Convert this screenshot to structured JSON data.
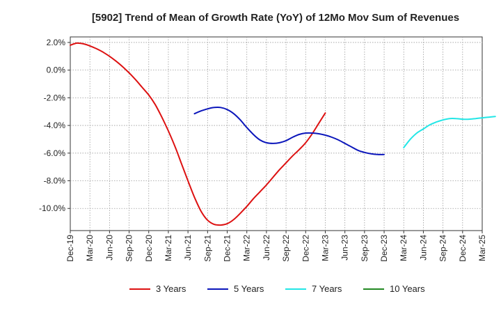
{
  "chart_data": {
    "type": "line",
    "title": "[5902]  Trend of Mean of Growth Rate (YoY) of 12Mo Mov Sum of Revenues",
    "xlabel": "",
    "ylabel": "",
    "ylim": [
      -11.6,
      2.4
    ],
    "y_ticks": [
      2.0,
      0.0,
      -2.0,
      -4.0,
      -6.0,
      -8.0,
      -10.0
    ],
    "y_tick_labels": [
      "2.0%",
      "0.0%",
      "-2.0%",
      "-4.0%",
      "-6.0%",
      "-8.0%",
      "-10.0%"
    ],
    "x_tick_labels": [
      "Dec-19",
      "Mar-20",
      "Jun-20",
      "Sep-20",
      "Dec-20",
      "Mar-21",
      "Jun-21",
      "Sep-21",
      "Dec-21",
      "Mar-22",
      "Jun-22",
      "Sep-22",
      "Dec-22",
      "Mar-23",
      "Jun-23",
      "Sep-23",
      "Dec-23",
      "Mar-24",
      "Jun-24",
      "Sep-24",
      "Dec-24",
      "Mar-25"
    ],
    "grid": true,
    "legend_position": "bottom",
    "series": [
      {
        "name": "3 Years",
        "color": "#dd1111",
        "start_index": 0,
        "values": [
          1.8,
          1.95,
          1.9,
          1.75,
          1.55,
          1.3,
          1.0,
          0.65,
          0.25,
          -0.2,
          -0.7,
          -1.25,
          -1.8,
          -2.5,
          -3.4,
          -4.4,
          -5.5,
          -6.75,
          -8.0,
          -9.2,
          -10.2,
          -10.85,
          -11.15,
          -11.2,
          -11.1,
          -10.8,
          -10.35,
          -9.85,
          -9.3,
          -8.8,
          -8.3,
          -7.75,
          -7.2,
          -6.7,
          -6.2,
          -5.75,
          -5.25,
          -4.6,
          -3.85,
          -3.1
        ]
      },
      {
        "name": "5 Years",
        "color": "#0b16bb",
        "start_index": 19,
        "values": [
          -3.15,
          -2.95,
          -2.8,
          -2.7,
          -2.7,
          -2.85,
          -3.15,
          -3.6,
          -4.15,
          -4.65,
          -5.05,
          -5.25,
          -5.3,
          -5.25,
          -5.1,
          -4.85,
          -4.65,
          -4.55,
          -4.55,
          -4.6,
          -4.7,
          -4.85,
          -5.05,
          -5.3,
          -5.55,
          -5.8,
          -5.95,
          -6.05,
          -6.1,
          -6.1
        ]
      },
      {
        "name": "7 Years",
        "color": "#22e6e6",
        "start_index": 51,
        "values": [
          -5.6,
          -5.0,
          -4.55,
          -4.25,
          -3.95,
          -3.75,
          -3.6,
          -3.5,
          -3.5,
          -3.55,
          -3.55,
          -3.5,
          -3.45,
          -3.4,
          -3.35
        ]
      },
      {
        "name": "10 Years",
        "color": "#228822",
        "start_index": 0,
        "values": []
      }
    ]
  }
}
